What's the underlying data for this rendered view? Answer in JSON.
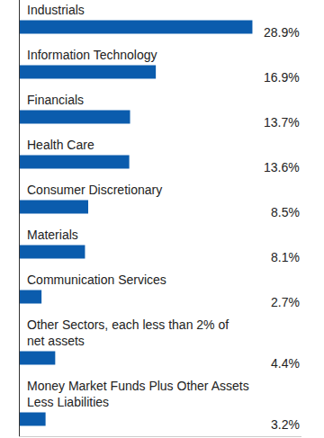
{
  "chart_data": {
    "type": "bar",
    "orientation": "horizontal",
    "categories": [
      "Industrials",
      "Information Technology",
      "Financials",
      "Health Care",
      "Consumer Discretionary",
      "Materials",
      "Communication Services",
      "Other Sectors, each less than 2% of net assets",
      "Money Market Funds Plus Other Assets Less Liabilities"
    ],
    "values": [
      28.9,
      16.9,
      13.7,
      13.6,
      8.5,
      8.1,
      2.7,
      4.4,
      3.2
    ],
    "value_labels": [
      "28.9%",
      "16.9%",
      "13.7%",
      "13.6%",
      "8.5%",
      "8.1%",
      "2.7%",
      "4.4%",
      "3.2%"
    ],
    "color": "#0b5cad",
    "xlim": [
      0,
      35
    ],
    "xticks": [],
    "tick_labels": false,
    "data_labels": true,
    "grid": false
  }
}
